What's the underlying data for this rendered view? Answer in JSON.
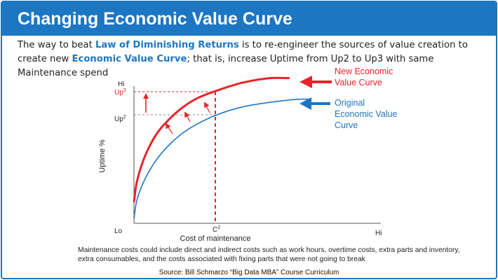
{
  "header": {
    "title": "Changing Economic Value Curve"
  },
  "intro": {
    "part1": "The way to beat ",
    "highlight1": "Law of Diminishing Returns",
    "part2": " is to re-engineer the sources of value creation to create new ",
    "highlight2": "Economic Value Curve",
    "part3": "; that is, increase Uptime from Up2 to Up3 with same Maintenance spend"
  },
  "chart_data": {
    "type": "line",
    "title": "",
    "xlabel": "Cost of maintenance",
    "ylabel": "Uptime %",
    "x_ticks": {
      "lo": "Lo",
      "hi": "Hi",
      "marker": "C2"
    },
    "y_ticks": {
      "hi": "Hi",
      "up3": "Up3",
      "up2": "Up2"
    },
    "xlim": [
      0,
      100
    ],
    "ylim": [
      0,
      100
    ],
    "marker_x": 34,
    "series": [
      {
        "name": "Original Economic Value Curve",
        "color": "#1d76c2",
        "x": [
          0,
          1,
          3,
          6,
          10,
          15,
          20,
          26,
          34,
          44,
          55,
          66,
          72
        ],
        "y": [
          3,
          14,
          24,
          34,
          44,
          53,
          60,
          66,
          72,
          77,
          80,
          82,
          82
        ]
      },
      {
        "name": "New Economic Value Curve",
        "color": "#e8232a",
        "x": [
          0,
          1,
          3,
          6,
          10,
          15,
          20,
          26,
          34,
          44,
          55,
          63
        ],
        "y": [
          14,
          26,
          38,
          50,
          61,
          70,
          77,
          83,
          88,
          93,
          96,
          96
        ]
      }
    ],
    "annotations": {
      "new_label": "New Economic Value Curve",
      "orig_label": "Original Economic Value Curve"
    }
  },
  "labels": {
    "new_line1": "New Economic",
    "new_line2": "Value Curve",
    "orig_line1": "Original",
    "orig_line2": "Economic Value",
    "orig_line3": "Curve",
    "up3_main": "Up",
    "up3_sup": "3",
    "up2_main": "Up",
    "up2_sup": "2",
    "c2_main": "C",
    "c2_sup": "2"
  },
  "colors": {
    "accent": "#1d76c2",
    "red": "#e8232a",
    "axis": "#555555"
  },
  "note": "Maintenance costs could include direct and indirect costs such as work hours, overtime costs, extra parts and inventory, extra consumables, and the costs associated with fixing parts that were not going to break",
  "source": "Source: Bill Schmarzo “Big Data MBA” Course Curriculum"
}
